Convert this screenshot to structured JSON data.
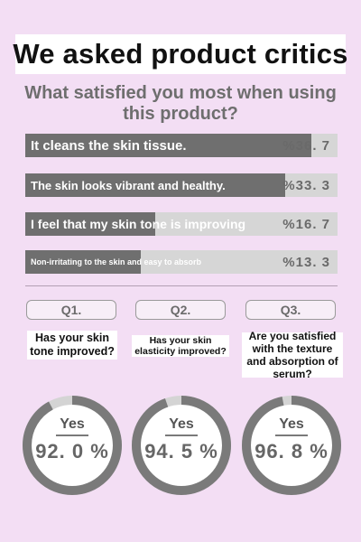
{
  "header": {
    "title": "We asked product critics"
  },
  "survey": {
    "question": "What satisfied you most when using this product?",
    "answers": [
      {
        "label": "It cleans the skin tissue.",
        "pct_text": "%36. 7",
        "value": 36.7
      },
      {
        "label": "The skin looks vibrant and healthy.",
        "pct_text": "%33. 3",
        "value": 33.3
      },
      {
        "label": "I feel that my skin tone is improving",
        "pct_text": "%16. 7",
        "value": 16.7
      },
      {
        "label": "Non-irritating to the skin and easy to absorb",
        "pct_text": "%13. 3",
        "value": 13.3
      }
    ]
  },
  "questions": [
    {
      "tag": "Q1.",
      "text": "Has your skin tone improved?",
      "answer": "Yes",
      "percent_text": "92. 0 %",
      "percent": 92.0
    },
    {
      "tag": "Q2.",
      "text": "Has your skin elasticity improved?",
      "answer": "Yes",
      "percent_text": "94. 5 %",
      "percent": 94.5
    },
    {
      "tag": "Q3.",
      "text": "Are you satisfied with the texture and absorption of serum?",
      "answer": "Yes",
      "percent_text": "96. 8 %",
      "percent": 96.8
    }
  ],
  "colors": {
    "background": "#f3def4",
    "bar_fill": "#6f6f6f",
    "bar_track": "#d6d6d6",
    "ring_fill": "#7a7a7a",
    "ring_track": "#d4d4d4"
  }
}
